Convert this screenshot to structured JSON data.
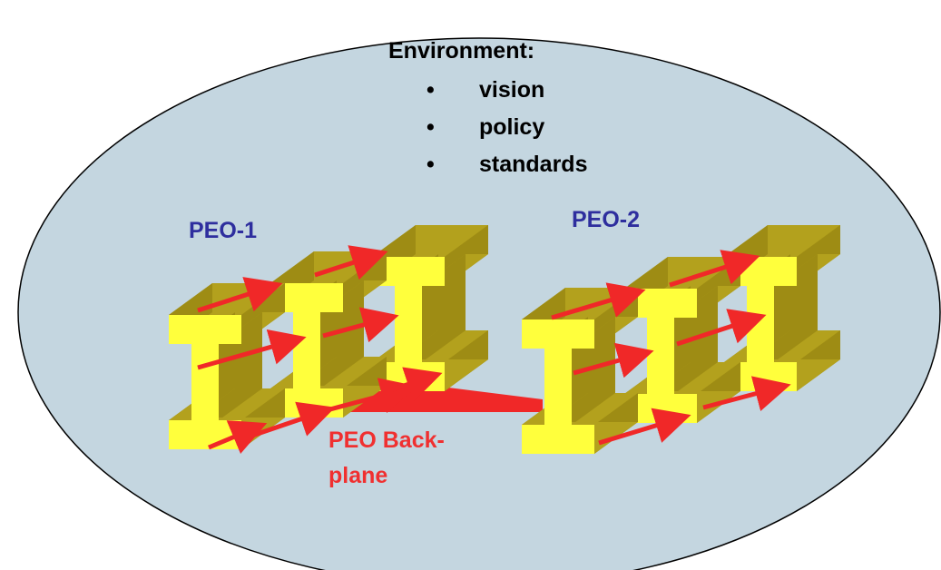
{
  "environment": {
    "title": "Environment:",
    "items": [
      "vision",
      "policy",
      "standards"
    ],
    "bullet": "•"
  },
  "peos": [
    {
      "label": "PEO-1"
    },
    {
      "label": "PEO-2"
    }
  ],
  "backplane": {
    "line1": "PEO Back-",
    "line2": "plane"
  },
  "colors": {
    "environment_fill": "#c4d6e0",
    "outline": "#000000",
    "beam_front": "#ffff3c",
    "beam_side": "#9e8c14",
    "beam_top": "#b3a11d",
    "arrow": "#f02828",
    "peo_label": "#2e2e9e",
    "backplane": "#f03030"
  }
}
